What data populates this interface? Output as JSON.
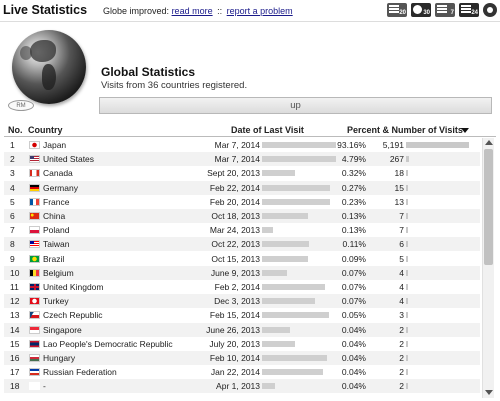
{
  "header": {
    "title": "Live Statistics",
    "notice": "Globe improved:",
    "read_more": "read more",
    "separator": "::",
    "report": "report a problem",
    "icons": [
      "toolbar-20-icon",
      "toolbar-globe-icon",
      "toolbar-7d-icon",
      "toolbar-24h-icon",
      "gear-icon"
    ],
    "icon_labels": [
      "20",
      "30",
      "7",
      "24"
    ]
  },
  "globe": {
    "badge": "RM"
  },
  "stats": {
    "title": "Global Statistics",
    "subtitle": "Visits from 36 countries registered.",
    "up_label": "up"
  },
  "table": {
    "columns": {
      "no": "No.",
      "country": "Country",
      "date": "Date of Last Visit",
      "pct": "Percent & Number of Visits"
    },
    "rows": [
      {
        "no": "1",
        "flag": "japan",
        "country": "Japan",
        "date": "Mar 7, 2014",
        "pct": "93.16%",
        "count": "5,191",
        "share": 93.16,
        "recency": 1.0
      },
      {
        "no": "2",
        "flag": "us",
        "country": "United States",
        "date": "Mar 7, 2014",
        "pct": "4.79%",
        "count": "267",
        "share": 4.79,
        "recency": 1.0
      },
      {
        "no": "3",
        "flag": "canada",
        "country": "Canada",
        "date": "Sept 20, 2013",
        "pct": "0.32%",
        "count": "18",
        "share": 0.32,
        "recency": 0.45
      },
      {
        "no": "4",
        "flag": "germany",
        "country": "Germany",
        "date": "Feb 22, 2014",
        "pct": "0.27%",
        "count": "15",
        "share": 0.27,
        "recency": 0.92
      },
      {
        "no": "5",
        "flag": "france",
        "country": "France",
        "date": "Feb 20, 2014",
        "pct": "0.23%",
        "count": "13",
        "share": 0.23,
        "recency": 0.92
      },
      {
        "no": "6",
        "flag": "china",
        "country": "China",
        "date": "Oct 18, 2013",
        "pct": "0.13%",
        "count": "7",
        "share": 0.13,
        "recency": 0.62
      },
      {
        "no": "7",
        "flag": "poland",
        "country": "Poland",
        "date": "Mar 24, 2013",
        "pct": "0.13%",
        "count": "7",
        "share": 0.13,
        "recency": 0.15
      },
      {
        "no": "8",
        "flag": "taiwan",
        "country": "Taiwan",
        "date": "Oct 22, 2013",
        "pct": "0.11%",
        "count": "6",
        "share": 0.11,
        "recency": 0.64
      },
      {
        "no": "9",
        "flag": "brazil",
        "country": "Brazil",
        "date": "Oct 15, 2013",
        "pct": "0.09%",
        "count": "5",
        "share": 0.09,
        "recency": 0.62
      },
      {
        "no": "10",
        "flag": "belgium",
        "country": "Belgium",
        "date": "June 9, 2013",
        "pct": "0.07%",
        "count": "4",
        "share": 0.07,
        "recency": 0.34
      },
      {
        "no": "11",
        "flag": "uk",
        "country": "United Kingdom",
        "date": "Feb 2, 2014",
        "pct": "0.07%",
        "count": "4",
        "share": 0.07,
        "recency": 0.85
      },
      {
        "no": "12",
        "flag": "turkey",
        "country": "Turkey",
        "date": "Dec 3, 2013",
        "pct": "0.07%",
        "count": "4",
        "share": 0.07,
        "recency": 0.72
      },
      {
        "no": "13",
        "flag": "czech",
        "country": "Czech Republic",
        "date": "Feb 15, 2014",
        "pct": "0.05%",
        "count": "3",
        "share": 0.05,
        "recency": 0.9
      },
      {
        "no": "14",
        "flag": "singapore",
        "country": "Singapore",
        "date": "June 26, 2013",
        "pct": "0.04%",
        "count": "2",
        "share": 0.04,
        "recency": 0.38
      },
      {
        "no": "15",
        "flag": "laos",
        "country": "Lao People's Democratic Republic",
        "date": "July 20, 2013",
        "pct": "0.04%",
        "count": "2",
        "share": 0.04,
        "recency": 0.45
      },
      {
        "no": "16",
        "flag": "hungary",
        "country": "Hungary",
        "date": "Feb 10, 2014",
        "pct": "0.04%",
        "count": "2",
        "share": 0.04,
        "recency": 0.88
      },
      {
        "no": "17",
        "flag": "russia",
        "country": "Russian Federation",
        "date": "Jan 22, 2014",
        "pct": "0.04%",
        "count": "2",
        "share": 0.04,
        "recency": 0.82
      },
      {
        "no": "18",
        "flag": "blank",
        "country": "-",
        "date": "Apr 1, 2013",
        "pct": "0.04%",
        "count": "2",
        "share": 0.04,
        "recency": 0.17
      }
    ]
  },
  "flags": {
    "japan": {
      "bg": "#ffffff",
      "fg": "#d40000",
      "style": "dot"
    },
    "us": {
      "bg": "#b22234",
      "fg": "#3c3b6e",
      "style": "canton"
    },
    "canada": {
      "bg": "#ffffff",
      "fg": "#d52b1e",
      "style": "sides"
    },
    "germany": {
      "bg": "#dd0000",
      "fg": "#000000",
      "style": "tri-h",
      "c3": "#ffce00"
    },
    "france": {
      "bg": "#ffffff",
      "fg": "#0055a4",
      "style": "tri-v",
      "c3": "#ef4135"
    },
    "china": {
      "bg": "#de2910",
      "fg": "#ffde00",
      "style": "star"
    },
    "poland": {
      "bg": "#ffffff",
      "fg": "#dc143c",
      "style": "half"
    },
    "taiwan": {
      "bg": "#fe0000",
      "fg": "#000095",
      "style": "canton"
    },
    "brazil": {
      "bg": "#009c3b",
      "fg": "#ffdf00",
      "style": "dot"
    },
    "belgium": {
      "bg": "#fdda24",
      "fg": "#000000",
      "style": "tri-v",
      "c3": "#ef3340"
    },
    "uk": {
      "bg": "#012169",
      "fg": "#c8102e",
      "style": "cross"
    },
    "turkey": {
      "bg": "#e30a17",
      "fg": "#ffffff",
      "style": "dot"
    },
    "czech": {
      "bg": "#ffffff",
      "fg": "#11457e",
      "style": "wedge",
      "c3": "#d7141a"
    },
    "singapore": {
      "bg": "#ed2939",
      "fg": "#ffffff",
      "style": "half-inv"
    },
    "laos": {
      "bg": "#002868",
      "fg": "#ce1126",
      "style": "bands"
    },
    "hungary": {
      "bg": "#ce2939",
      "fg": "#ffffff",
      "style": "tri-h",
      "c3": "#477050"
    },
    "russia": {
      "bg": "#ffffff",
      "fg": "#0039a6",
      "style": "tri-h",
      "c3": "#d52b1e"
    },
    "blank": {
      "bg": "#ffffff",
      "fg": "#ffffff",
      "style": "none"
    }
  }
}
